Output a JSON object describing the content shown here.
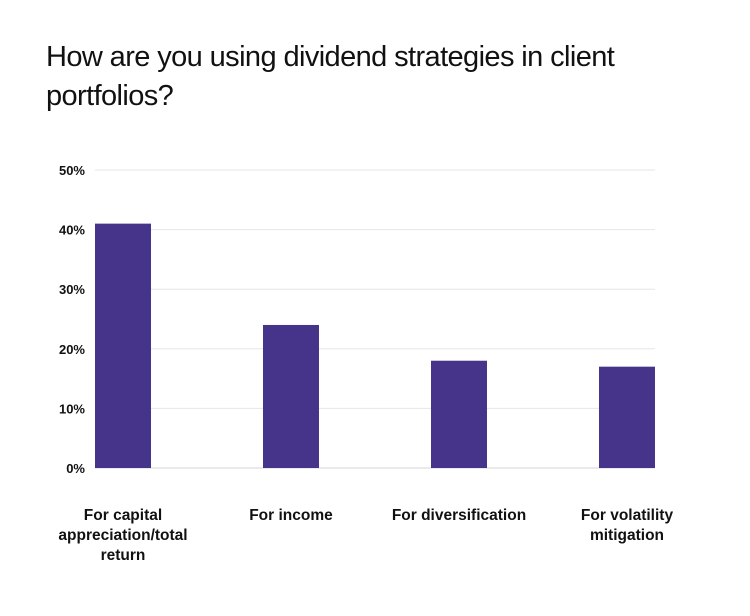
{
  "chart_data": {
    "type": "bar",
    "title": "How are you using dividend strategies in client portfolios?",
    "categories": [
      "For capital appreciation/total return",
      "For income",
      "For diversification",
      "For volatility mitigation"
    ],
    "values": [
      41,
      24,
      18,
      17
    ],
    "ylim": [
      0,
      50
    ],
    "yticks": [
      "0%",
      "10%",
      "20%",
      "30%",
      "40%",
      "50%"
    ],
    "xlabel": "",
    "ylabel": "",
    "grid": true,
    "bar_color": "#46338a"
  }
}
